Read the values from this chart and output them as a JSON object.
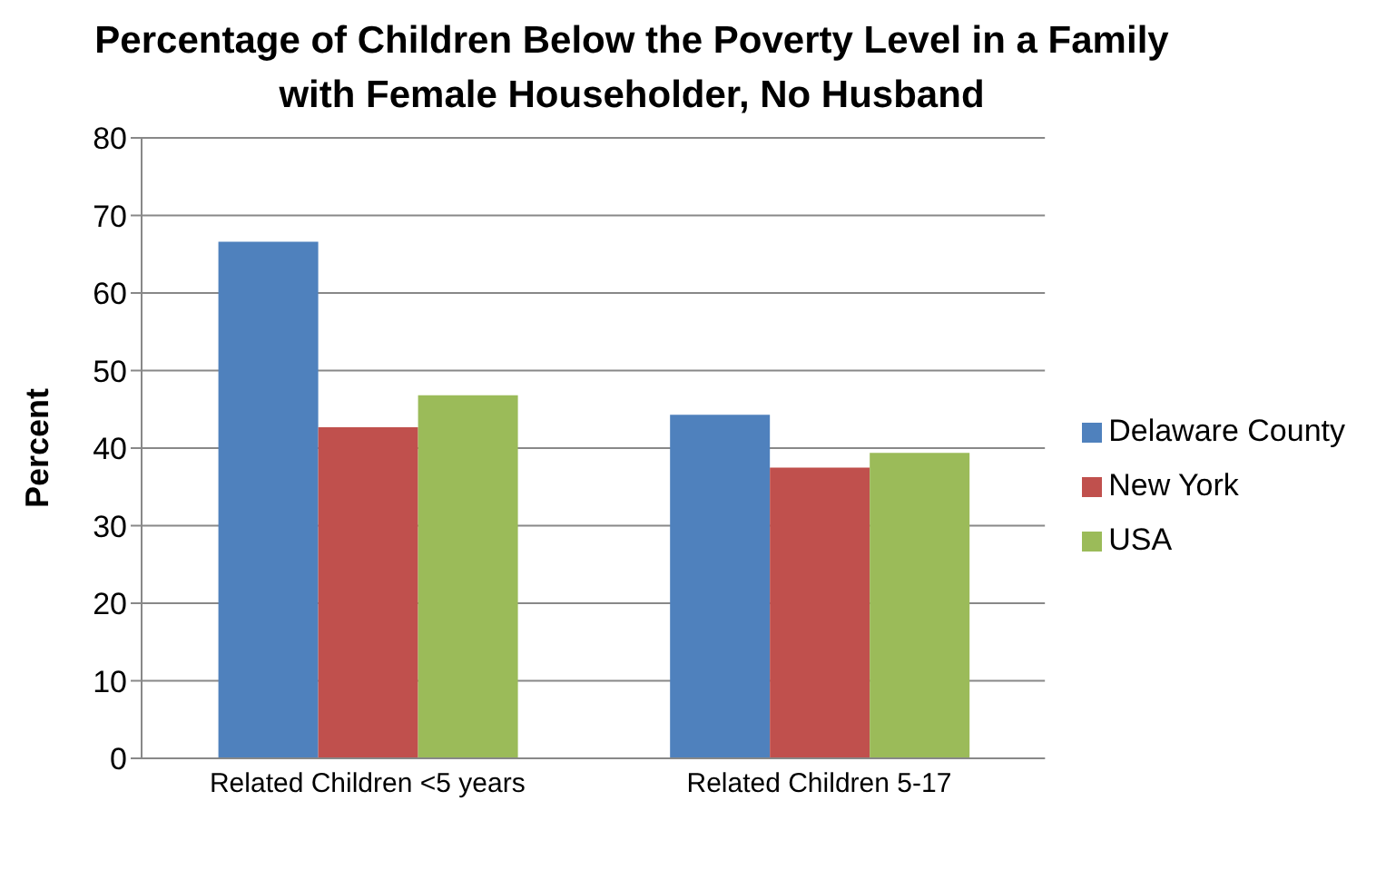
{
  "chart_data": {
    "type": "bar",
    "title": "Percentage of Children Below the Poverty Level in a Family with Female Householder, No Husband",
    "ylabel": "Percent",
    "categories": [
      "Related Children <5 years",
      "Related Children 5-17"
    ],
    "series": [
      {
        "name": "Delaware County",
        "color": "#4f81bd",
        "values": [
          66.6,
          44.3
        ]
      },
      {
        "name": "New York",
        "color": "#c0504d",
        "values": [
          42.7,
          37.5
        ]
      },
      {
        "name": "USA",
        "color": "#9bbb59",
        "values": [
          46.8,
          39.4
        ]
      }
    ],
    "ylim": [
      0,
      80
    ],
    "yticks": [
      0,
      10,
      20,
      30,
      40,
      50,
      60,
      70,
      80
    ],
    "grid": "y",
    "legend": "right"
  }
}
